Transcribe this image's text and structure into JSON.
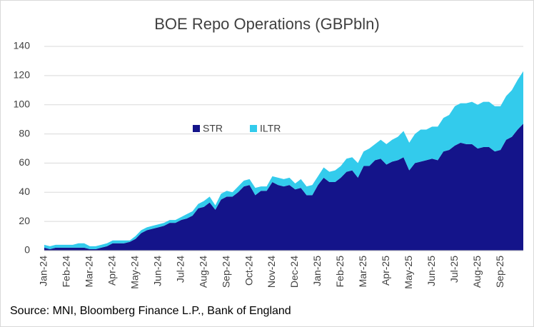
{
  "chart_data": {
    "type": "stacked_area",
    "title": "BOE Repo Operations (GBPbln)",
    "source": "Source: MNI, Bloomberg Finance L.P., Bank of England",
    "categories": [
      "Jan-24",
      null,
      null,
      null,
      "Feb-24",
      null,
      null,
      null,
      "Mar-24",
      null,
      null,
      null,
      "Apr-24",
      null,
      null,
      null,
      "May-24",
      null,
      null,
      null,
      "Jun-24",
      null,
      null,
      null,
      "Jul-24",
      null,
      null,
      null,
      "Aug-24",
      null,
      null,
      null,
      "Sep-24",
      null,
      null,
      null,
      "Oct-24",
      null,
      null,
      null,
      "Nov-24",
      null,
      null,
      null,
      "Dec-24",
      null,
      null,
      null,
      "Jan-25",
      null,
      null,
      null,
      "Feb-25",
      null,
      null,
      null,
      "Mar-25",
      null,
      null,
      null,
      "Apr-25",
      null,
      null,
      null,
      "May-25",
      null,
      null,
      null,
      "Jun-25",
      null,
      null,
      null,
      "Jul-25",
      null,
      null,
      null,
      "Aug-25",
      null,
      null,
      null,
      "Sep-25",
      null,
      null,
      null,
      null
    ],
    "series": [
      {
        "name": "STR",
        "color": "#14148a",
        "values": [
          2,
          1,
          2,
          2,
          2,
          2,
          2,
          2,
          1,
          1,
          2,
          3,
          5,
          5,
          5,
          6,
          8,
          12,
          14,
          15,
          16,
          17,
          19,
          19,
          21,
          22,
          24,
          29,
          30,
          33,
          28,
          35,
          37,
          37,
          40,
          44,
          45,
          38,
          41,
          41,
          47,
          45,
          44,
          45,
          42,
          43,
          38,
          38,
          45,
          50,
          47,
          47,
          50,
          54,
          55,
          50,
          58,
          58,
          62,
          63,
          59,
          61,
          62,
          64,
          55,
          60,
          61,
          62,
          63,
          62,
          68,
          69,
          72,
          74,
          73,
          73,
          70,
          71,
          71,
          68,
          69,
          76,
          78,
          83,
          87
        ]
      },
      {
        "name": "ILTR",
        "color": "#33cbec",
        "values": [
          2,
          2,
          2,
          2,
          2,
          2,
          3,
          3,
          2,
          2,
          2,
          2,
          2,
          2,
          2,
          1,
          2,
          2,
          2,
          2,
          2,
          2,
          2,
          2,
          2,
          3,
          3,
          3,
          4,
          4,
          3,
          4,
          4,
          3,
          4,
          4,
          4,
          5,
          3,
          3,
          4,
          5,
          5,
          5,
          4,
          6,
          6,
          7,
          6,
          7,
          7,
          8,
          8,
          9,
          9,
          10,
          10,
          12,
          11,
          13,
          14,
          15,
          16,
          18,
          19,
          20,
          22,
          21,
          22,
          23,
          23,
          24,
          27,
          27,
          28,
          29,
          30,
          31,
          31,
          31,
          30,
          30,
          32,
          34,
          36
        ]
      }
    ],
    "ylim": [
      0,
      140
    ],
    "yticks": [
      0,
      20,
      40,
      60,
      80,
      100,
      120,
      140
    ],
    "grid": true,
    "legend": "center"
  }
}
